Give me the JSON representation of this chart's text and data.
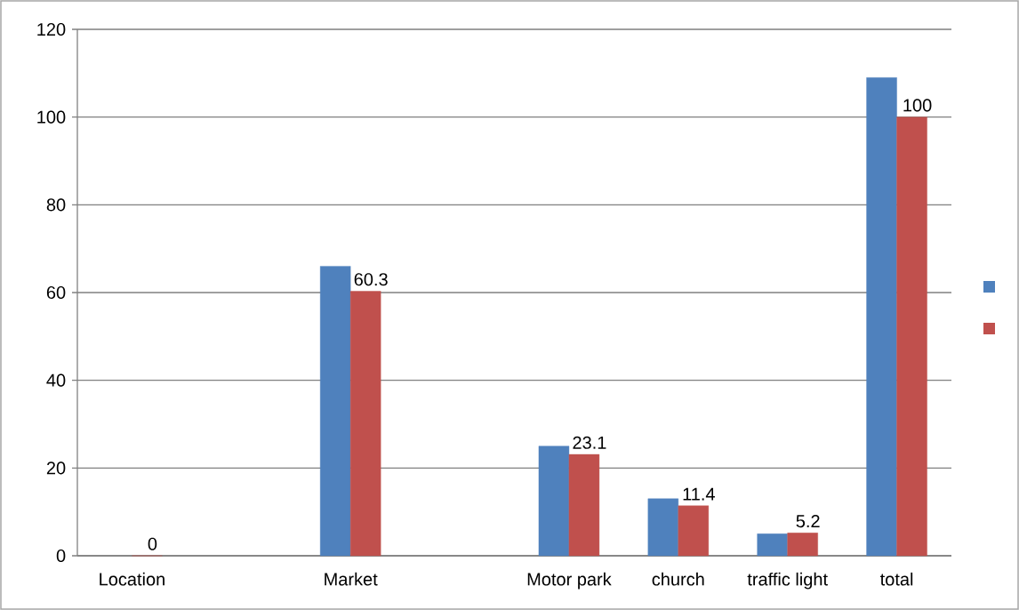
{
  "chart_data": {
    "type": "bar",
    "categories": [
      "Location",
      null,
      "Market",
      null,
      "Motor park",
      "church",
      "traffic light",
      "total"
    ],
    "series": [
      {
        "color": "#4f81bd",
        "values": [
          null,
          null,
          66,
          null,
          25,
          13,
          5,
          109
        ]
      },
      {
        "color": "#c0504d",
        "values": [
          0,
          null,
          60.3,
          null,
          23.1,
          11.4,
          5.2,
          100
        ],
        "value_labels": [
          "0",
          null,
          "60.3",
          null,
          "23.1",
          "11.4",
          "5.2",
          "100"
        ]
      }
    ],
    "ylim": [
      0,
      120
    ],
    "yticks": [
      0,
      20,
      40,
      60,
      80,
      100,
      120
    ],
    "grid": "y"
  }
}
